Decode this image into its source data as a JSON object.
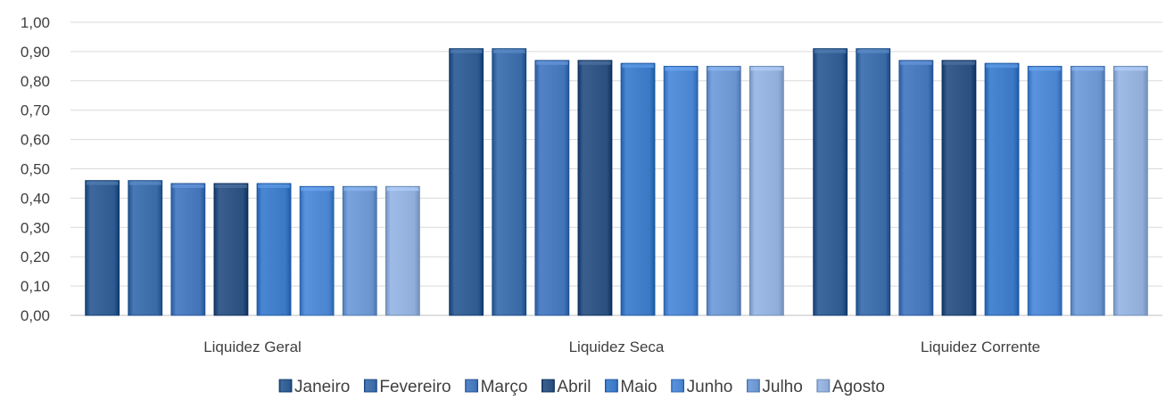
{
  "chart_data": {
    "type": "bar",
    "categories": [
      "Liquidez Geral",
      "Liquidez Seca",
      "Liquidez Corrente"
    ],
    "series": [
      {
        "name": "Janeiro",
        "color": "#2e5a8f",
        "values": [
          0.46,
          0.91,
          0.91
        ]
      },
      {
        "name": "Fevereiro",
        "color": "#3a6aa6",
        "values": [
          0.46,
          0.91,
          0.91
        ]
      },
      {
        "name": "Março",
        "color": "#4474b8",
        "values": [
          0.45,
          0.87,
          0.87
        ]
      },
      {
        "name": "Abril",
        "color": "#2b4f7e",
        "values": [
          0.45,
          0.87,
          0.87
        ]
      },
      {
        "name": "Maio",
        "color": "#3b78c4",
        "values": [
          0.45,
          0.86,
          0.86
        ]
      },
      {
        "name": "Junho",
        "color": "#4a84cf",
        "values": [
          0.44,
          0.85,
          0.85
        ]
      },
      {
        "name": "Julho",
        "color": "#6a95cf",
        "values": [
          0.44,
          0.85,
          0.85
        ]
      },
      {
        "name": "Agosto",
        "color": "#8fadd8",
        "values": [
          0.44,
          0.85,
          0.85
        ]
      }
    ],
    "yticks": [
      "0,00",
      "0,10",
      "0,20",
      "0,30",
      "0,40",
      "0,50",
      "0,60",
      "0,70",
      "0,80",
      "0,90",
      "1,00"
    ],
    "ylim": [
      0,
      1
    ],
    "grid": true,
    "legend_position": "bottom"
  }
}
